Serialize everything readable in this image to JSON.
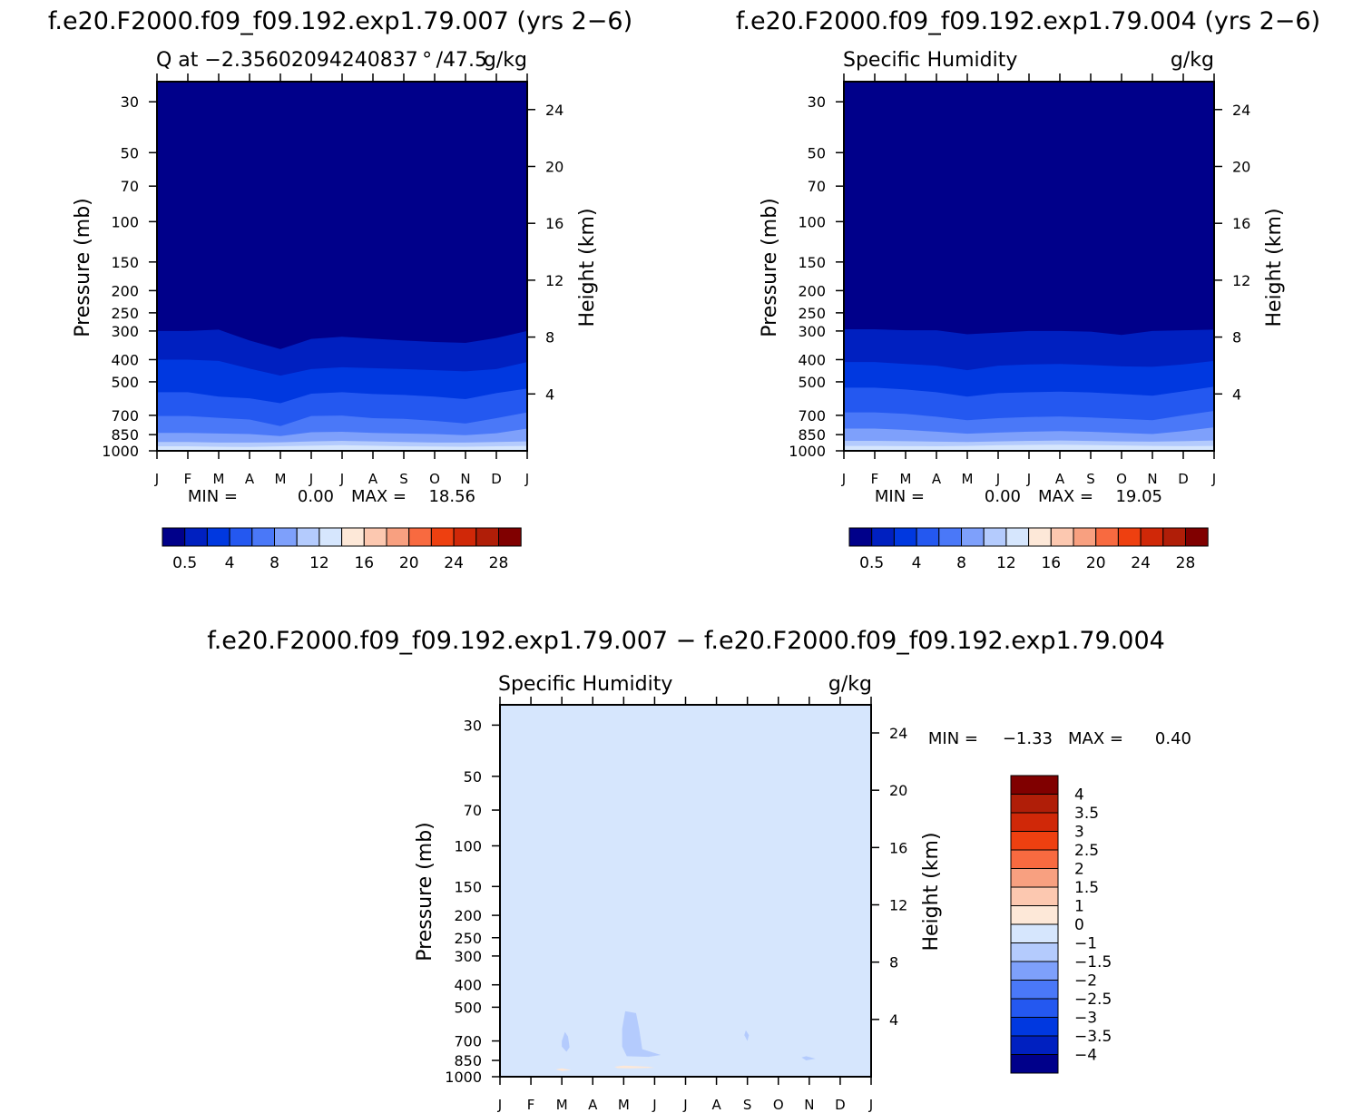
{
  "chart_data": [
    {
      "type": "heatmap",
      "run_title": "f.e20.F2000.f09_f09.192.exp1.79.007 (yrs 2−6)",
      "title": "Q at −2.35602094240837 ° /47.5",
      "units": "g/kg",
      "xlabel": "",
      "ylabel": "Pressure (mb)",
      "y2label": "Height (km)",
      "x_ticks": [
        "J",
        "F",
        "M",
        "A",
        "M",
        "J",
        "J",
        "A",
        "S",
        "O",
        "N",
        "D",
        "J"
      ],
      "y_ticks": [
        30,
        50,
        70,
        100,
        150,
        200,
        250,
        300,
        400,
        500,
        700,
        850,
        1000
      ],
      "y_log_scale": true,
      "ylim": [
        1000,
        24
      ],
      "y2_ticks": [
        24,
        20,
        16,
        12,
        8,
        4
      ],
      "stats": {
        "min_label": "MIN =",
        "min": "0.00",
        "max_label": "MAX =",
        "max": "18.56"
      },
      "colorbar": {
        "levels": [
          "0.5",
          "4",
          "8",
          "12",
          "16",
          "20",
          "24",
          "28"
        ],
        "colors": [
          "#00008a",
          "#0020c0",
          "#0038e0",
          "#2458f0",
          "#4a78f8",
          "#7ea0fb",
          "#b4cbfd",
          "#d6e6fd",
          "#fde8d8",
          "#fcc8b0",
          "#f8a080",
          "#f86a40",
          "#ee4010",
          "#d02808",
          "#b01e08",
          "#800000"
        ]
      },
      "boundaries_hpa": [
        [
          300,
          300,
          296,
          330,
          360,
          325,
          318,
          324,
          330,
          335,
          338,
          322,
          300
        ],
        [
          400,
          400,
          405,
          438,
          470,
          440,
          432,
          436,
          440,
          445,
          450,
          440,
          410
        ],
        [
          555,
          555,
          580,
          590,
          620,
          563,
          555,
          565,
          570,
          580,
          595,
          560,
          535
        ],
        [
          705,
          705,
          718,
          730,
          780,
          705,
          702,
          720,
          725,
          740,
          760,
          720,
          680
        ],
        [
          835,
          835,
          840,
          845,
          862,
          830,
          826,
          835,
          840,
          845,
          855,
          838,
          800
        ],
        [
          915,
          915,
          920,
          920,
          918,
          910,
          905,
          910,
          915,
          920,
          920,
          915,
          910
        ],
        [
          955,
          955,
          960,
          962,
          955,
          950,
          945,
          950,
          955,
          958,
          960,
          955,
          952
        ]
      ]
    },
    {
      "type": "heatmap",
      "run_title": "f.e20.F2000.f09_f09.192.exp1.79.004 (yrs 2−6)",
      "title": "Specific Humidity",
      "units": "g/kg",
      "xlabel": "",
      "ylabel": "Pressure (mb)",
      "y2label": "Height (km)",
      "x_ticks": [
        "J",
        "F",
        "M",
        "A",
        "M",
        "J",
        "J",
        "A",
        "S",
        "O",
        "N",
        "D",
        "J"
      ],
      "y_ticks": [
        30,
        50,
        70,
        100,
        150,
        200,
        250,
        300,
        400,
        500,
        700,
        850,
        1000
      ],
      "y_log_scale": true,
      "ylim": [
        1000,
        24
      ],
      "y2_ticks": [
        24,
        20,
        16,
        12,
        8,
        4
      ],
      "stats": {
        "min_label": "MIN =",
        "min": "0.00",
        "max_label": "MAX =",
        "max": "19.05"
      },
      "colorbar": {
        "levels": [
          "0.5",
          "4",
          "8",
          "12",
          "16",
          "20",
          "24",
          "28"
        ],
        "colors": [
          "#00008a",
          "#0020c0",
          "#0038e0",
          "#2458f0",
          "#4a78f8",
          "#7ea0fb",
          "#b4cbfd",
          "#d6e6fd",
          "#fde8d8",
          "#fcc8b0",
          "#f8a080",
          "#f86a40",
          "#ee4010",
          "#d02808",
          "#b01e08",
          "#800000"
        ]
      },
      "boundaries_hpa": [
        [
          295,
          295,
          298,
          298,
          310,
          305,
          300,
          300,
          302,
          312,
          300,
          298,
          296
        ],
        [
          410,
          410,
          418,
          425,
          445,
          425,
          420,
          418,
          422,
          428,
          430,
          420,
          405
        ],
        [
          530,
          530,
          540,
          555,
          580,
          560,
          555,
          552,
          556,
          565,
          575,
          550,
          525
        ],
        [
          680,
          680,
          690,
          710,
          735,
          720,
          712,
          708,
          715,
          725,
          735,
          700,
          670
        ],
        [
          800,
          800,
          810,
          825,
          842,
          832,
          825,
          820,
          826,
          835,
          845,
          820,
          790
        ],
        [
          905,
          905,
          908,
          912,
          915,
          910,
          905,
          902,
          906,
          910,
          912,
          908,
          902
        ],
        [
          952,
          952,
          954,
          955,
          952,
          946,
          942,
          940,
          944,
          948,
          952,
          954,
          952
        ]
      ]
    },
    {
      "type": "heatmap",
      "run_title": "f.e20.F2000.f09_f09.192.exp1.79.007 − f.e20.F2000.f09_f09.192.exp1.79.004",
      "title": "Specific Humidity",
      "units": "g/kg",
      "xlabel": "",
      "ylabel": "Pressure (mb)",
      "y2label": "Height (km)",
      "x_ticks": [
        "J",
        "F",
        "M",
        "A",
        "M",
        "J",
        "J",
        "A",
        "S",
        "O",
        "N",
        "D",
        "J"
      ],
      "y_ticks": [
        30,
        50,
        70,
        100,
        150,
        200,
        250,
        300,
        400,
        500,
        700,
        850,
        1000
      ],
      "y_log_scale": true,
      "ylim": [
        1000,
        24
      ],
      "y2_ticks": [
        24,
        20,
        16,
        12,
        8,
        4
      ],
      "stats": {
        "min_label": "MIN =",
        "min": "−1.33",
        "max_label": "MAX =",
        "max": "0.40"
      },
      "background_color": "#d6e6fd",
      "colorbar": {
        "labels": [
          "4",
          "3.5",
          "3",
          "2.5",
          "2",
          "1.5",
          "1",
          "0",
          "−1",
          "−1.5",
          "−2",
          "−2.5",
          "−3",
          "−3.5",
          "−4"
        ],
        "colors": [
          "#800000",
          "#b01e08",
          "#d02808",
          "#ee4010",
          "#f86a40",
          "#f8a080",
          "#fcc8b0",
          "#fde8d8",
          "#d6e6fd",
          "#b4cbfd",
          "#7ea0fb",
          "#4a78f8",
          "#2458f0",
          "#0038e0",
          "#0020c0",
          "#00008a"
        ]
      },
      "regions": [
        {
          "color": "#b4cbfd",
          "points": [
            [
              2.0,
              700
            ],
            [
              2.1,
              640
            ],
            [
              2.2,
              670
            ],
            [
              2.25,
              745
            ],
            [
              2.15,
              780
            ],
            [
              2.0,
              740
            ]
          ]
        },
        {
          "color": "#b4cbfd",
          "points": [
            [
              3.95,
              620
            ],
            [
              4.05,
              520
            ],
            [
              4.4,
              530
            ],
            [
              4.5,
              620
            ],
            [
              4.6,
              760
            ],
            [
              5.2,
              805
            ],
            [
              4.8,
              820
            ],
            [
              4.1,
              815
            ],
            [
              3.95,
              740
            ]
          ]
        },
        {
          "color": "#b4cbfd",
          "points": [
            [
              7.9,
              660
            ],
            [
              7.95,
              630
            ],
            [
              8.05,
              660
            ],
            [
              8.0,
              700
            ]
          ]
        },
        {
          "color": "#b4cbfd",
          "points": [
            [
              9.75,
              825
            ],
            [
              9.9,
              815
            ],
            [
              10.2,
              835
            ],
            [
              9.9,
              850
            ]
          ]
        },
        {
          "color": "#fde8d8",
          "points": [
            [
              1.8,
              930
            ],
            [
              2.0,
              920
            ],
            [
              2.3,
              935
            ],
            [
              2.0,
              945
            ]
          ]
        },
        {
          "color": "#fde8d8",
          "points": [
            [
              3.7,
              905
            ],
            [
              4.0,
              895
            ],
            [
              4.8,
              905
            ],
            [
              5.0,
              915
            ],
            [
              4.2,
              920
            ],
            [
              3.8,
              918
            ]
          ]
        }
      ]
    }
  ]
}
